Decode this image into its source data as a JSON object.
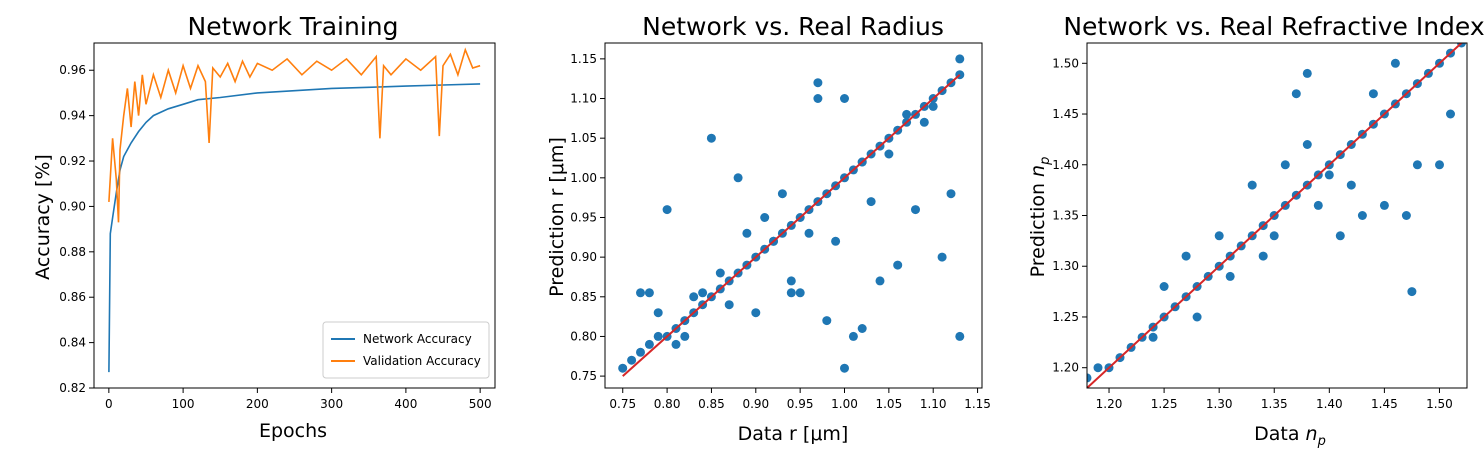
{
  "chart_data": [
    {
      "type": "line",
      "title": "Network Training",
      "xlabel": "Epochs",
      "ylabel": "Accuracy [%]",
      "xlim": [
        -20,
        520
      ],
      "ylim": [
        0.82,
        0.972
      ],
      "xticks": [
        "0",
        "100",
        "200",
        "300",
        "400",
        "500"
      ],
      "yticks": [
        "0.82",
        "0.84",
        "0.86",
        "0.88",
        "0.90",
        "0.92",
        "0.94",
        "0.96"
      ],
      "legend_position": "lower-right",
      "series": [
        {
          "name": "Network Accuracy",
          "color": "#1f77b4",
          "x": [
            0,
            2,
            5,
            10,
            15,
            20,
            30,
            40,
            50,
            60,
            80,
            100,
            120,
            150,
            200,
            250,
            300,
            350,
            400,
            450,
            500
          ],
          "y": [
            0.827,
            0.888,
            0.895,
            0.906,
            0.916,
            0.922,
            0.928,
            0.933,
            0.937,
            0.94,
            0.943,
            0.945,
            0.947,
            0.948,
            0.95,
            0.951,
            0.952,
            0.9525,
            0.953,
            0.9535,
            0.954
          ]
        },
        {
          "name": "Validation Accuracy",
          "color": "#ff7f0e",
          "x": [
            0,
            5,
            10,
            13,
            15,
            20,
            25,
            30,
            35,
            40,
            45,
            50,
            60,
            70,
            80,
            90,
            100,
            110,
            120,
            130,
            135,
            140,
            150,
            160,
            170,
            180,
            190,
            200,
            220,
            240,
            260,
            280,
            300,
            320,
            340,
            360,
            365,
            370,
            380,
            400,
            420,
            440,
            445,
            450,
            460,
            470,
            480,
            490,
            500
          ],
          "y": [
            0.902,
            0.93,
            0.912,
            0.893,
            0.925,
            0.94,
            0.952,
            0.935,
            0.955,
            0.94,
            0.958,
            0.945,
            0.958,
            0.948,
            0.96,
            0.95,
            0.962,
            0.952,
            0.962,
            0.955,
            0.928,
            0.961,
            0.957,
            0.963,
            0.955,
            0.964,
            0.957,
            0.963,
            0.96,
            0.965,
            0.958,
            0.964,
            0.96,
            0.965,
            0.958,
            0.966,
            0.93,
            0.962,
            0.958,
            0.965,
            0.96,
            0.966,
            0.931,
            0.962,
            0.967,
            0.958,
            0.969,
            0.961,
            0.962
          ]
        }
      ]
    },
    {
      "type": "scatter",
      "title": "Network vs. Real Radius",
      "xlabel": "Data r [μm]",
      "ylabel": "Prediction r [μm]",
      "xlim": [
        0.73,
        1.155
      ],
      "ylim": [
        0.735,
        1.17
      ],
      "xticks": [
        "0.75",
        "0.80",
        "0.85",
        "0.90",
        "0.95",
        "1.00",
        "1.05",
        "1.10",
        "1.15"
      ],
      "yticks": [
        "0.75",
        "0.80",
        "0.85",
        "0.90",
        "0.95",
        "1.00",
        "1.05",
        "1.10",
        "1.15"
      ],
      "point_color": "#1f77b4",
      "reference_line": {
        "color": "#d62728",
        "from": [
          0.75,
          0.75
        ],
        "to": [
          1.13,
          1.13
        ]
      },
      "points": {
        "x": [
          0.75,
          0.76,
          0.77,
          0.78,
          0.79,
          0.8,
          0.81,
          0.82,
          0.83,
          0.84,
          0.85,
          0.86,
          0.87,
          0.88,
          0.89,
          0.9,
          0.91,
          0.92,
          0.93,
          0.94,
          0.95,
          0.96,
          0.97,
          0.98,
          0.99,
          1.0,
          1.01,
          1.02,
          1.03,
          1.04,
          1.05,
          1.06,
          1.07,
          1.08,
          1.09,
          1.1,
          1.11,
          1.12,
          1.13,
          0.78,
          0.8,
          0.77,
          0.84,
          0.83,
          0.9,
          0.94,
          0.95,
          0.97,
          0.98,
          0.99,
          1.0,
          1.01,
          1.02,
          1.04,
          1.06,
          1.08,
          1.11,
          1.12,
          1.13,
          0.97,
          1.0,
          0.85,
          0.88,
          0.92,
          0.96,
          0.94,
          0.91,
          1.03,
          1.05,
          0.93,
          0.87,
          0.81,
          0.79,
          0.82,
          0.86,
          0.89,
          1.02,
          1.07,
          1.09,
          1.1,
          1.13
        ],
        "y": [
          0.76,
          0.77,
          0.78,
          0.79,
          0.8,
          0.8,
          0.81,
          0.82,
          0.83,
          0.84,
          0.85,
          0.86,
          0.87,
          0.88,
          0.89,
          0.9,
          0.91,
          0.92,
          0.93,
          0.94,
          0.95,
          0.96,
          0.97,
          0.98,
          0.99,
          1.0,
          1.01,
          1.02,
          1.03,
          1.04,
          1.05,
          1.06,
          1.07,
          1.08,
          1.09,
          1.1,
          1.11,
          1.12,
          1.13,
          0.855,
          0.96,
          0.855,
          0.855,
          0.85,
          0.83,
          0.855,
          0.855,
          1.12,
          0.82,
          0.92,
          0.76,
          0.8,
          0.81,
          0.87,
          0.89,
          0.96,
          0.9,
          0.98,
          0.8,
          1.1,
          1.1,
          1.05,
          1.0,
          0.92,
          0.93,
          0.87,
          0.95,
          0.97,
          1.03,
          0.98,
          0.84,
          0.79,
          0.83,
          0.8,
          0.88,
          0.93,
          1.02,
          1.08,
          1.07,
          1.09,
          1.15
        ]
      }
    },
    {
      "type": "scatter",
      "title": "Network vs. Real Refractive Index",
      "xlabel": "Data n_p",
      "ylabel": "Prediction n_p",
      "xlim": [
        1.18,
        1.525
      ],
      "ylim": [
        1.18,
        1.52
      ],
      "xticks": [
        "1.20",
        "1.25",
        "1.30",
        "1.35",
        "1.40",
        "1.45",
        "1.50"
      ],
      "yticks": [
        "1.20",
        "1.25",
        "1.30",
        "1.35",
        "1.40",
        "1.45",
        "1.50"
      ],
      "point_color": "#1f77b4",
      "reference_line": {
        "color": "#d62728",
        "from": [
          1.18,
          1.18
        ],
        "to": [
          1.525,
          1.525
        ]
      },
      "points": {
        "x": [
          1.18,
          1.19,
          1.2,
          1.21,
          1.22,
          1.23,
          1.24,
          1.25,
          1.26,
          1.27,
          1.28,
          1.29,
          1.3,
          1.31,
          1.32,
          1.33,
          1.34,
          1.35,
          1.36,
          1.37,
          1.38,
          1.39,
          1.4,
          1.41,
          1.42,
          1.43,
          1.44,
          1.45,
          1.46,
          1.47,
          1.48,
          1.49,
          1.5,
          1.51,
          1.52,
          1.25,
          1.28,
          1.3,
          1.33,
          1.35,
          1.37,
          1.38,
          1.4,
          1.42,
          1.43,
          1.45,
          1.47,
          1.48,
          1.5,
          1.51,
          1.475,
          1.41,
          1.38,
          1.36,
          1.31,
          1.27,
          1.24,
          1.46,
          1.44,
          1.39,
          1.34
        ],
        "y": [
          1.19,
          1.2,
          1.2,
          1.21,
          1.22,
          1.23,
          1.24,
          1.25,
          1.26,
          1.27,
          1.28,
          1.29,
          1.3,
          1.31,
          1.32,
          1.33,
          1.34,
          1.35,
          1.36,
          1.37,
          1.38,
          1.39,
          1.4,
          1.41,
          1.42,
          1.43,
          1.44,
          1.45,
          1.46,
          1.47,
          1.48,
          1.49,
          1.5,
          1.51,
          1.52,
          1.28,
          1.25,
          1.33,
          1.38,
          1.33,
          1.47,
          1.49,
          1.39,
          1.38,
          1.35,
          1.36,
          1.35,
          1.4,
          1.4,
          1.45,
          1.275,
          1.33,
          1.42,
          1.4,
          1.29,
          1.31,
          1.23,
          1.5,
          1.47,
          1.36,
          1.31
        ]
      }
    }
  ]
}
